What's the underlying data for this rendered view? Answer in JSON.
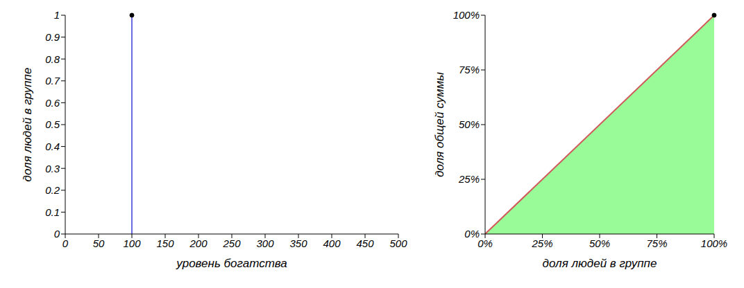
{
  "chart_data": [
    {
      "type": "stem",
      "x": [
        100
      ],
      "values": [
        1
      ],
      "color": "#3b3bd9",
      "marker": "circle",
      "xlabel": "уровень богатства",
      "ylabel": "доля людей в группе",
      "xlim": [
        0,
        500
      ],
      "xticks": [
        0,
        50,
        100,
        150,
        200,
        250,
        300,
        350,
        400,
        450,
        500
      ],
      "ylim": [
        0,
        1
      ],
      "yticks": [
        0,
        0.1,
        0.2,
        0.3,
        0.4,
        0.5,
        0.6,
        0.7,
        0.8,
        0.9,
        1
      ],
      "grid": false
    },
    {
      "type": "area",
      "x": [
        0,
        100
      ],
      "values": [
        0,
        100
      ],
      "color": "#d05a5a",
      "marker": "circle",
      "xlabel": "доля людей в группе",
      "ylabel": "доля общей суммы",
      "xlim": [
        0,
        100
      ],
      "xticks": [
        {
          "value": 0,
          "label": "0%"
        },
        {
          "value": 25,
          "label": "25%"
        },
        {
          "value": 50,
          "label": "50%"
        },
        {
          "value": 75,
          "label": "75%"
        },
        {
          "value": 100,
          "label": "100%"
        }
      ],
      "ylim": [
        0,
        100
      ],
      "yticks": [
        {
          "value": 0,
          "label": "0%"
        },
        {
          "value": 25,
          "label": "25%"
        },
        {
          "value": 50,
          "label": "50%"
        },
        {
          "value": 75,
          "label": "75%"
        },
        {
          "value": 100,
          "label": "100%"
        }
      ],
      "grid": false
    }
  ]
}
